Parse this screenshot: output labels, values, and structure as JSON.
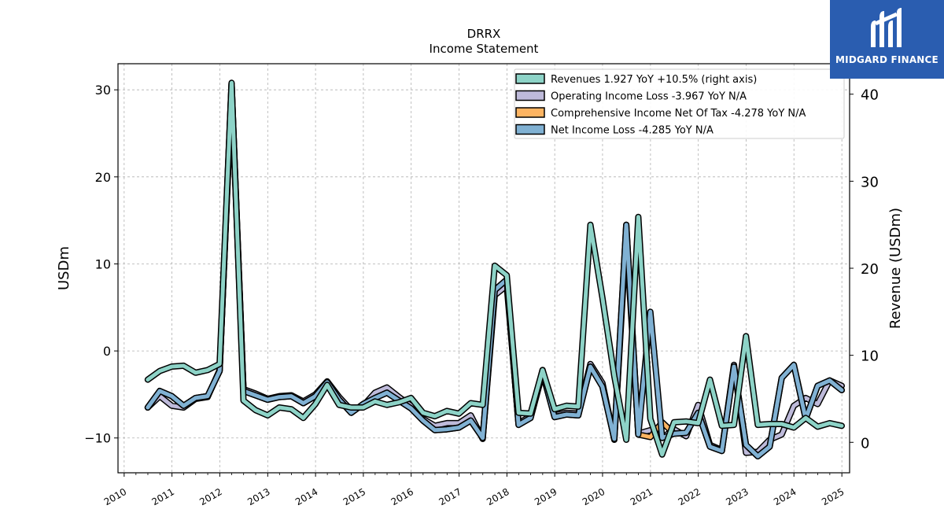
{
  "logo": {
    "text": "MIDGARD FINANCE",
    "background": "#2a5db0"
  },
  "chart_data": {
    "type": "line",
    "title": "DRRX",
    "subtitle": "Income Statement",
    "ylabel": "USDm",
    "ylabel_right": "Revenue (USDm)",
    "ylim": [
      -14,
      33
    ],
    "ylim_right": [
      -3.5,
      43.5
    ],
    "yticks": [
      -10,
      0,
      10,
      20,
      30
    ],
    "yticks_right": [
      0,
      10,
      20,
      30,
      40
    ],
    "xlim": [
      "2009-11-15",
      "2025-03-01"
    ],
    "xticks": [
      "2010",
      "2011",
      "2012",
      "2013",
      "2014",
      "2015",
      "2016",
      "2017",
      "2018",
      "2019",
      "2020",
      "2021",
      "2022",
      "2023",
      "2024",
      "2025"
    ],
    "grid": true,
    "legend_position": "top-right",
    "x": [
      "2010-06-30",
      "2010-09-30",
      "2010-12-31",
      "2011-03-31",
      "2011-06-30",
      "2011-09-30",
      "2011-12-31",
      "2012-03-31",
      "2012-06-30",
      "2012-09-30",
      "2012-12-31",
      "2013-03-31",
      "2013-06-30",
      "2013-09-30",
      "2013-12-31",
      "2014-03-31",
      "2014-06-30",
      "2014-09-30",
      "2014-12-31",
      "2015-03-31",
      "2015-06-30",
      "2015-09-30",
      "2015-12-31",
      "2016-03-31",
      "2016-06-30",
      "2016-09-30",
      "2016-12-31",
      "2017-03-31",
      "2017-06-30",
      "2017-09-30",
      "2017-12-31",
      "2018-03-31",
      "2018-06-30",
      "2018-09-30",
      "2018-12-31",
      "2019-03-31",
      "2019-06-30",
      "2019-09-30",
      "2019-12-31",
      "2020-03-31",
      "2020-06-30",
      "2020-09-30",
      "2020-12-31",
      "2021-03-31",
      "2021-06-30",
      "2021-09-30",
      "2021-12-31",
      "2022-03-31",
      "2022-06-30",
      "2022-09-30",
      "2022-12-31",
      "2023-03-31",
      "2023-06-30",
      "2023-09-30",
      "2023-12-31",
      "2024-03-31",
      "2024-06-30",
      "2024-09-30",
      "2024-12-31"
    ],
    "series": [
      {
        "name": "Revenues  1.927 YoY +10.5% (right axis)",
        "color": "#8dd3c7",
        "axis": "right",
        "values": [
          7.2,
          8.2,
          8.7,
          8.8,
          8.0,
          8.3,
          9.0,
          41.3,
          4.8,
          3.7,
          3.1,
          4.0,
          3.8,
          2.8,
          4.4,
          6.6,
          4.3,
          4.0,
          4.0,
          4.7,
          4.3,
          4.6,
          5.1,
          3.4,
          3.0,
          3.6,
          3.3,
          4.5,
          4.3,
          20.3,
          19.2,
          3.4,
          3.3,
          8.3,
          3.8,
          4.2,
          4.1,
          25.0,
          16.6,
          7.6,
          0.3,
          25.9,
          2.7,
          -1.4,
          2.3,
          2.4,
          2.2,
          7.2,
          1.9,
          2.0,
          12.2,
          2.0,
          2.1,
          2.1,
          1.7,
          2.8,
          1.8,
          2.2,
          1.9
        ]
      },
      {
        "name": "Operating Income Loss  -3.967 YoY N/A",
        "color": "#bebada",
        "axis": "left",
        "values": [
          -6.5,
          -5.2,
          -6.3,
          -6.5,
          -5.5,
          -5.3,
          -2.2,
          30.0,
          -4.4,
          -4.9,
          -5.5,
          -5.2,
          -5.1,
          -5.8,
          -5.0,
          -3.5,
          -5.3,
          -6.8,
          -6.3,
          -4.8,
          -4.2,
          -5.3,
          -6.3,
          -7.8,
          -8.6,
          -8.3,
          -8.3,
          -7.4,
          -10.1,
          6.4,
          7.5,
          -8.3,
          -7.5,
          -2.2,
          -7.4,
          -7.1,
          -7.2,
          -1.5,
          -3.7,
          -10.2,
          13.4,
          -9.5,
          -9.1,
          -10.0,
          -9.0,
          -9.8,
          -6.2,
          -10.8,
          -11.4,
          -1.6,
          -11.7,
          -11.6,
          -10.2,
          -9.6,
          -6.3,
          -5.4,
          -6.1,
          -3.4,
          -4.0
        ]
      },
      {
        "name": "Comprehensive Income Net Of Tax  -4.278 YoY N/A",
        "color": "#fdb462",
        "axis": "left",
        "values": [
          -6.5,
          -4.6,
          -5.2,
          -6.3,
          -5.4,
          -5.2,
          -2.3,
          30.7,
          -4.6,
          -5.1,
          -5.6,
          -5.3,
          -5.2,
          -6.0,
          -5.2,
          -3.6,
          -5.6,
          -7.1,
          -6.1,
          -5.4,
          -4.8,
          -5.7,
          -6.6,
          -8.0,
          -9.1,
          -9.0,
          -8.8,
          -8.0,
          -10.0,
          7.0,
          8.2,
          -8.5,
          -7.7,
          -2.5,
          -7.6,
          -7.3,
          -7.4,
          -1.8,
          -4.1,
          -10.1,
          14.5,
          -9.6,
          -9.9,
          -8.2,
          -9.5,
          -9.4,
          -7.1,
          -11.0,
          -11.5,
          -1.8,
          -10.8,
          -12.1,
          -11.0,
          -3.1,
          -1.6,
          -7.8,
          -4.0,
          -3.4,
          -4.5
        ]
      },
      {
        "name": "Net Income Loss  -4.285 YoY N/A",
        "color": "#80b1d3",
        "axis": "left",
        "values": [
          -6.5,
          -4.6,
          -5.2,
          -6.3,
          -5.4,
          -5.2,
          -2.3,
          30.7,
          -4.6,
          -5.1,
          -5.6,
          -5.3,
          -5.2,
          -6.0,
          -5.2,
          -3.6,
          -5.6,
          -7.1,
          -6.1,
          -5.4,
          -4.8,
          -5.7,
          -6.6,
          -8.0,
          -9.1,
          -9.0,
          -8.8,
          -8.0,
          -10.0,
          7.0,
          8.2,
          -8.5,
          -7.7,
          -2.5,
          -7.6,
          -7.3,
          -7.4,
          -1.8,
          -4.1,
          -10.1,
          14.5,
          -9.6,
          4.5,
          -10.0,
          -9.5,
          -9.4,
          -7.1,
          -11.0,
          -11.5,
          -1.8,
          -10.8,
          -12.1,
          -11.0,
          -3.1,
          -1.6,
          -7.8,
          -4.0,
          -3.4,
          -4.5
        ]
      }
    ]
  }
}
